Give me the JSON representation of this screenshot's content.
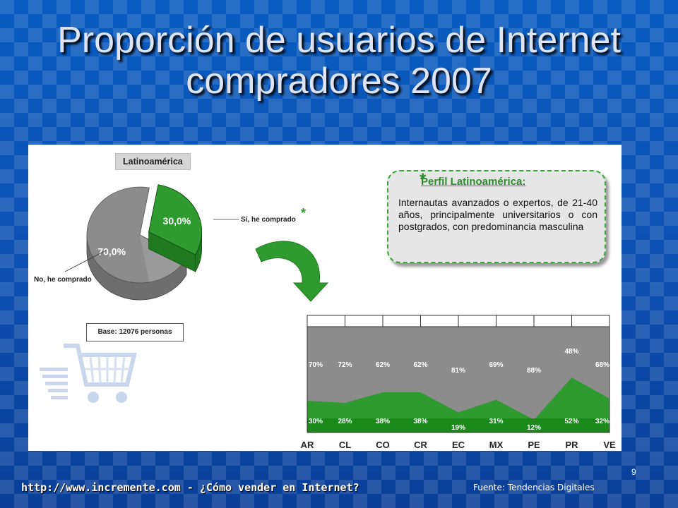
{
  "slide": {
    "title": "Proporción de usuarios de Internet compradores 2007",
    "page_number": "9",
    "footer_url": "http://www.incremente.com - ¿Cómo vender en Internet?",
    "footer_source": "Fuente: Tendencias Digitales"
  },
  "pie": {
    "region_label": "Latinoamérica",
    "base_label": "Base: 12076 personas",
    "slices": [
      {
        "label": "Sí, he comprado",
        "value": 30.0,
        "display": "30,0%",
        "color": "#2f9a2f"
      },
      {
        "label": "No, he comprado",
        "value": 70.0,
        "display": "70,0%",
        "color": "#8c8c8c"
      }
    ],
    "asterisk": "*"
  },
  "profile": {
    "star": "*",
    "title": "Perfil Latinoamérica:",
    "body": "Internautas avanzados o expertos, de 21-40 años, principalmente universitarios o con postgrados, con predominancia masculina"
  },
  "chart_data": [
    {
      "type": "pie",
      "title": "Latinoamérica",
      "categories": [
        "Sí, he comprado",
        "No, he comprado"
      ],
      "values": [
        30.0,
        70.0
      ]
    },
    {
      "type": "area",
      "categories": [
        "AR",
        "CL",
        "CO",
        "CR",
        "EC",
        "MX",
        "PE",
        "PR",
        "VE"
      ],
      "ylim": [
        0,
        100
      ],
      "stacked": true,
      "series": [
        {
          "name": "",
          "values": [
            30,
            28,
            38,
            38,
            19,
            31,
            12,
            52,
            32
          ],
          "color": "#2f9a2f"
        },
        {
          "name": "",
          "values": [
            70,
            72,
            62,
            62,
            81,
            69,
            88,
            48,
            68
          ],
          "color": "#8c8c8c"
        }
      ]
    }
  ],
  "colors": {
    "background": "#0c4fb0",
    "green": "#2f9a2f",
    "dark_green": "#1f7a1f",
    "gray": "#8c8c8c"
  },
  "icons": [
    "shopping-cart-icon",
    "curved-arrow-icon"
  ]
}
